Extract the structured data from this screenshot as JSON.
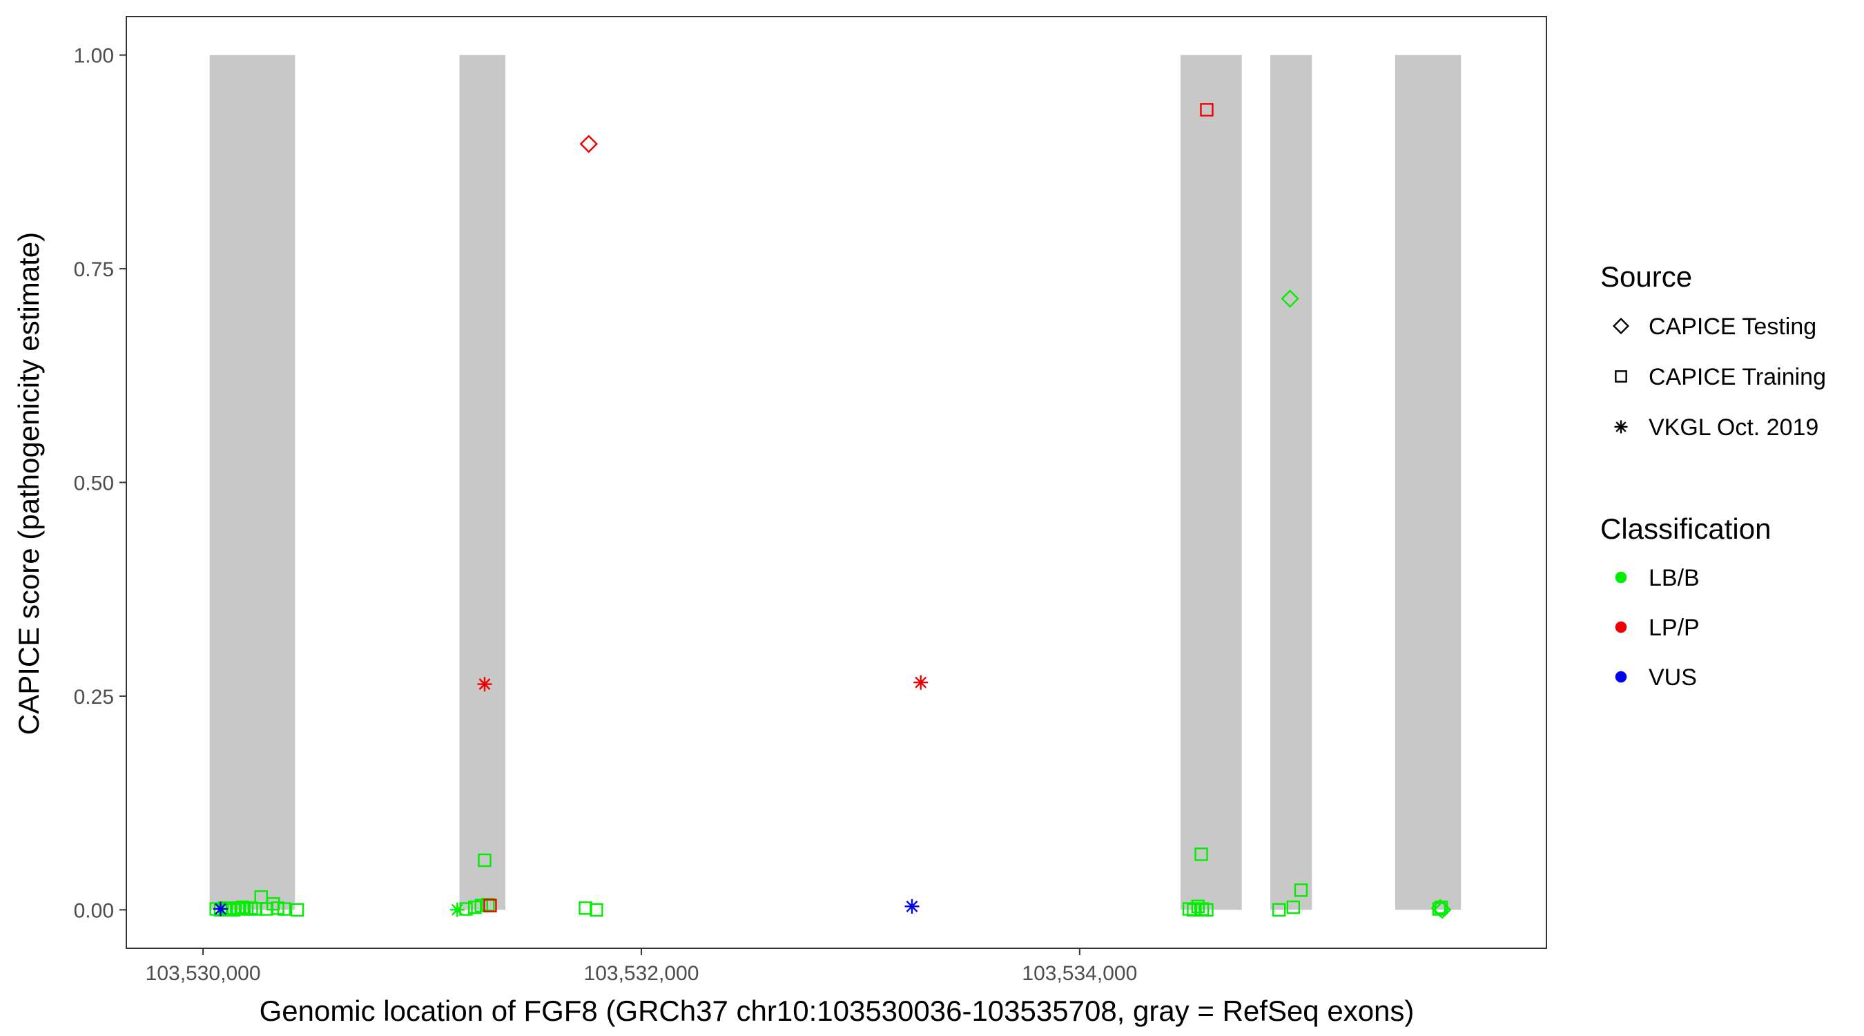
{
  "chart_data": {
    "type": "scatter",
    "xlabel": "Genomic location of FGF8 (GRCh37 chr10:103530036-103535708, gray = RefSeq exons)",
    "ylabel": "CAPICE score (pathogenicity estimate)",
    "xlim": [
      103529650,
      103536130
    ],
    "ylim": [
      -0.045,
      1.045
    ],
    "x_ticks": [
      103530000,
      103532000,
      103534000
    ],
    "x_tick_labels": [
      "103,530,000",
      "103,532,000",
      "103,534,000"
    ],
    "y_ticks": [
      0,
      0.25,
      0.5,
      0.75,
      1
    ],
    "y_tick_labels": [
      "0.00",
      "0.25",
      "0.50",
      "0.75",
      "1.00"
    ],
    "grid": false,
    "exons": [
      {
        "start": 103530030,
        "end": 103530420
      },
      {
        "start": 103531170,
        "end": 103531380
      },
      {
        "start": 103534460,
        "end": 103534740
      },
      {
        "start": 103534870,
        "end": 103535060
      },
      {
        "start": 103535440,
        "end": 103535740
      }
    ],
    "legend": {
      "placement": "right",
      "source_title": "Source",
      "source_entries": [
        {
          "label": "CAPICE Testing",
          "shape": "diamond"
        },
        {
          "label": "CAPICE Training",
          "shape": "square"
        },
        {
          "label": "VKGL Oct. 2019",
          "shape": "asterisk"
        }
      ],
      "class_title": "Classification",
      "class_entries": [
        {
          "label": "LB/B",
          "color": "#00ee00"
        },
        {
          "label": "LP/P",
          "color": "#ee0000"
        },
        {
          "label": "VUS",
          "color": "#0000ee"
        }
      ]
    },
    "colors": {
      "LB/B": "#00ee00",
      "LP/P": "#ee0000",
      "VUS": "#0000ee",
      "exon": "#c8c8c8"
    },
    "points": [
      {
        "x": 103530060,
        "y": 0.001,
        "shape": "square",
        "cls": "LB/B"
      },
      {
        "x": 103530080,
        "y": 0.0,
        "shape": "square",
        "cls": "LB/B"
      },
      {
        "x": 103530100,
        "y": 0.002,
        "shape": "square",
        "cls": "LB/B"
      },
      {
        "x": 103530120,
        "y": 0.001,
        "shape": "square",
        "cls": "LB/B"
      },
      {
        "x": 103530140,
        "y": 0.0,
        "shape": "square",
        "cls": "LB/B"
      },
      {
        "x": 103530160,
        "y": 0.002,
        "shape": "square",
        "cls": "LB/B"
      },
      {
        "x": 103530180,
        "y": 0.003,
        "shape": "square",
        "cls": "LB/B"
      },
      {
        "x": 103530200,
        "y": 0.001,
        "shape": "square",
        "cls": "LB/B"
      },
      {
        "x": 103530220,
        "y": 0.002,
        "shape": "square",
        "cls": "LB/B"
      },
      {
        "x": 103530240,
        "y": 0.001,
        "shape": "square",
        "cls": "LB/B"
      },
      {
        "x": 103530265,
        "y": 0.015,
        "shape": "square",
        "cls": "LB/B"
      },
      {
        "x": 103530290,
        "y": 0.001,
        "shape": "square",
        "cls": "LB/B"
      },
      {
        "x": 103530320,
        "y": 0.007,
        "shape": "square",
        "cls": "LB/B"
      },
      {
        "x": 103530340,
        "y": 0.002,
        "shape": "square",
        "cls": "LB/B"
      },
      {
        "x": 103530370,
        "y": 0.001,
        "shape": "square",
        "cls": "LB/B"
      },
      {
        "x": 103530430,
        "y": 0.0,
        "shape": "square",
        "cls": "LB/B"
      },
      {
        "x": 103530080,
        "y": 0.001,
        "shape": "asterisk",
        "cls": "VUS"
      },
      {
        "x": 103531160,
        "y": 0.0,
        "shape": "asterisk",
        "cls": "LB/B"
      },
      {
        "x": 103531200,
        "y": 0.001,
        "shape": "square",
        "cls": "LB/B"
      },
      {
        "x": 103531240,
        "y": 0.003,
        "shape": "square",
        "cls": "LB/B"
      },
      {
        "x": 103531270,
        "y": 0.005,
        "shape": "square",
        "cls": "LB/B"
      },
      {
        "x": 103531300,
        "y": 0.006,
        "shape": "square",
        "cls": "LB/B"
      },
      {
        "x": 103531310,
        "y": 0.005,
        "shape": "square",
        "cls": "LP/P"
      },
      {
        "x": 103531285,
        "y": 0.058,
        "shape": "square",
        "cls": "LB/B"
      },
      {
        "x": 103531285,
        "y": 0.264,
        "shape": "asterisk",
        "cls": "LP/P"
      },
      {
        "x": 103531760,
        "y": 0.896,
        "shape": "diamond",
        "cls": "LP/P"
      },
      {
        "x": 103531745,
        "y": 0.002,
        "shape": "square",
        "cls": "LB/B"
      },
      {
        "x": 103531795,
        "y": 0.0,
        "shape": "square",
        "cls": "LB/B"
      },
      {
        "x": 103533235,
        "y": 0.004,
        "shape": "asterisk",
        "cls": "VUS"
      },
      {
        "x": 103533275,
        "y": 0.266,
        "shape": "asterisk",
        "cls": "LP/P"
      },
      {
        "x": 103534580,
        "y": 0.936,
        "shape": "square",
        "cls": "LP/P"
      },
      {
        "x": 103534555,
        "y": 0.065,
        "shape": "square",
        "cls": "LB/B"
      },
      {
        "x": 103534500,
        "y": 0.001,
        "shape": "square",
        "cls": "LB/B"
      },
      {
        "x": 103534520,
        "y": 0.0,
        "shape": "square",
        "cls": "LB/B"
      },
      {
        "x": 103534540,
        "y": 0.004,
        "shape": "square",
        "cls": "LB/B"
      },
      {
        "x": 103534560,
        "y": 0.001,
        "shape": "square",
        "cls": "LB/B"
      },
      {
        "x": 103534580,
        "y": 0.0,
        "shape": "square",
        "cls": "LB/B"
      },
      {
        "x": 103534960,
        "y": 0.715,
        "shape": "diamond",
        "cls": "LB/B"
      },
      {
        "x": 103534910,
        "y": 0.0,
        "shape": "square",
        "cls": "LB/B"
      },
      {
        "x": 103534975,
        "y": 0.003,
        "shape": "square",
        "cls": "LB/B"
      },
      {
        "x": 103535010,
        "y": 0.023,
        "shape": "square",
        "cls": "LB/B"
      },
      {
        "x": 103535640,
        "y": 0.001,
        "shape": "square",
        "cls": "LB/B"
      },
      {
        "x": 103535650,
        "y": 0.003,
        "shape": "square",
        "cls": "LB/B"
      },
      {
        "x": 103535645,
        "y": 0.002,
        "shape": "diamond",
        "cls": "LB/B"
      },
      {
        "x": 103535655,
        "y": 0.0,
        "shape": "diamond",
        "cls": "LB/B"
      }
    ]
  }
}
